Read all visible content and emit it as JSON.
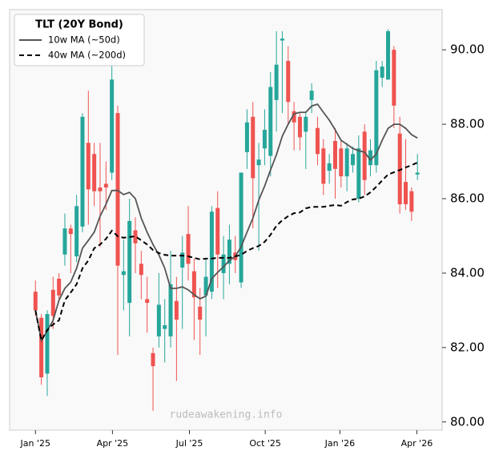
{
  "chart_data": {
    "type": "candlestick",
    "legend_title": "TLT (20Y Bond)",
    "legend_position": "upper left",
    "watermark": "rudeawakening.info",
    "up_color": "#26a69a",
    "down_color": "#ef5350",
    "x": [
      0,
      1,
      2,
      3,
      4,
      5,
      6,
      7,
      8,
      9,
      10,
      11,
      12,
      13,
      14,
      15,
      16,
      17,
      18,
      19,
      20,
      21,
      22,
      23,
      24,
      25,
      26,
      27,
      28,
      29,
      30,
      31,
      32,
      33,
      34,
      35,
      36,
      37,
      38,
      39,
      40,
      41,
      42,
      43,
      44,
      45,
      46,
      47,
      48,
      49,
      50,
      51,
      52,
      53,
      54,
      55,
      56,
      57,
      58,
      59,
      60,
      61,
      62,
      63,
      64,
      65
    ],
    "open": [
      83.5,
      82.8,
      81.3,
      83.55,
      83.85,
      84.5,
      85.2,
      84.45,
      85.25,
      87.5,
      87.2,
      86.3,
      86.4,
      86.7,
      88.3,
      83.95,
      83.2,
      85.15,
      84.25,
      83.3,
      81.85,
      82.3,
      82.5,
      82.3,
      83.25,
      84.15,
      85.05,
      84.05,
      83.1,
      83.4,
      83.5,
      85.75,
      84.0,
      84.25,
      84.55,
      83.75,
      87.25,
      88.2,
      86.9,
      87.35,
      87.15,
      88.65,
      90.25,
      89.7,
      88.35,
      88.2,
      87.8,
      88.65,
      87.9,
      87.35,
      86.75,
      87.55,
      87.35,
      86.6,
      86.9,
      86.0,
      87.8,
      86.9,
      86.9,
      89.25,
      89.2,
      90.0,
      87.75,
      86.45,
      86.2,
      86.65
    ],
    "high": [
      83.8,
      82.9,
      83.0,
      83.9,
      84.0,
      85.6,
      85.3,
      86.1,
      88.3,
      88.9,
      87.5,
      87.5,
      87.0,
      89.8,
      88.5,
      84.9,
      86.0,
      85.5,
      84.6,
      83.9,
      82.0,
      84.0,
      83.3,
      84.6,
      83.9,
      85.0,
      85.8,
      84.4,
      83.6,
      84.4,
      85.8,
      86.2,
      85.0,
      85.3,
      85.0,
      86.7,
      88.4,
      88.6,
      87.5,
      88.4,
      89.4,
      90.5,
      90.5,
      90.1,
      88.6,
      88.3,
      88.3,
      89.1,
      88.2,
      87.6,
      87.2,
      87.9,
      87.6,
      87.5,
      87.4,
      87.7,
      88.0,
      87.6,
      89.7,
      89.7,
      90.55,
      90.1,
      88.2,
      87.6,
      86.3,
      87.2
    ],
    "low": [
      82.85,
      81.0,
      80.7,
      82.5,
      83.3,
      84.2,
      84.0,
      84.3,
      85.1,
      85.3,
      85.8,
      84.7,
      85.7,
      86.5,
      81.8,
      83.0,
      82.3,
      84.0,
      83.3,
      82.4,
      80.3,
      82.0,
      81.6,
      82.0,
      81.1,
      82.5,
      83.8,
      82.2,
      81.8,
      82.3,
      83.3,
      83.6,
      83.3,
      83.7,
      84.0,
      83.6,
      86.8,
      85.2,
      84.6,
      86.9,
      86.6,
      87.8,
      88.3,
      88.0,
      87.3,
      87.3,
      86.8,
      88.3,
      86.9,
      86.1,
      86.4,
      86.0,
      86.3,
      86.2,
      86.7,
      85.9,
      86.1,
      86.6,
      86.7,
      89.0,
      89.2,
      87.9,
      85.6,
      85.7,
      85.4,
      86.5
    ],
    "close": [
      83.0,
      81.2,
      82.9,
      82.85,
      83.4,
      85.2,
      85.05,
      85.8,
      88.2,
      86.25,
      86.2,
      86.2,
      86.3,
      89.2,
      84.2,
      84.05,
      85.4,
      84.8,
      83.95,
      83.2,
      81.5,
      83.15,
      82.6,
      83.7,
      82.75,
      84.55,
      84.25,
      83.35,
      82.75,
      83.9,
      85.65,
      84.5,
      84.5,
      84.9,
      84.35,
      86.7,
      88.05,
      86.55,
      87.05,
      87.85,
      89.0,
      89.6,
      90.3,
      88.6,
      88.05,
      87.65,
      88.2,
      88.9,
      87.2,
      86.4,
      86.95,
      86.8,
      86.6,
      87.35,
      87.2,
      87.35,
      86.5,
      87.3,
      89.45,
      89.55,
      90.5,
      88.5,
      85.85,
      85.85,
      85.65,
      86.7
    ],
    "lines": [
      {
        "name": "10w MA (~50d)",
        "color": "#555555",
        "dash": false,
        "values": [
          83.0,
          82.19,
          82.45,
          82.73,
          83.27,
          83.59,
          83.76,
          84.13,
          84.67,
          84.88,
          85.1,
          85.53,
          85.85,
          86.22,
          86.22,
          86.11,
          86.17,
          86.0,
          85.48,
          85.1,
          84.77,
          84.49,
          84.13,
          83.59,
          83.59,
          83.63,
          83.55,
          83.42,
          83.31,
          83.38,
          83.85,
          84.02,
          84.17,
          84.34,
          84.45,
          84.71,
          85.1,
          85.48,
          85.96,
          86.34,
          86.77,
          87.18,
          87.68,
          88.0,
          88.28,
          88.32,
          88.32,
          88.49,
          88.54,
          88.32,
          88.11,
          87.85,
          87.57,
          87.46,
          87.35,
          87.29,
          87.25,
          87.04,
          87.2,
          87.57,
          87.89,
          88.0,
          88.0,
          87.89,
          87.72,
          87.63
        ]
      },
      {
        "name": "40w MA (~200d)",
        "color": "#000000",
        "dash": true,
        "values": [
          83.0,
          82.19,
          82.47,
          82.62,
          82.73,
          83.27,
          83.48,
          83.7,
          84.13,
          84.34,
          84.67,
          84.77,
          84.92,
          85.14,
          84.99,
          84.95,
          84.97,
          84.99,
          84.88,
          84.77,
          84.62,
          84.54,
          84.49,
          84.47,
          84.47,
          84.47,
          84.45,
          84.41,
          84.37,
          84.39,
          84.39,
          84.41,
          84.41,
          84.41,
          84.45,
          84.49,
          84.6,
          84.67,
          84.73,
          84.84,
          85.03,
          85.27,
          85.42,
          85.53,
          85.61,
          85.63,
          85.74,
          85.78,
          85.78,
          85.78,
          85.81,
          85.83,
          85.81,
          85.91,
          85.98,
          86.0,
          86.06,
          86.17,
          86.32,
          86.49,
          86.65,
          86.71,
          86.77,
          86.84,
          86.9,
          86.97
        ]
      }
    ],
    "xlim": [
      -4.4,
      69.2
    ],
    "xticks": [
      {
        "value": 0,
        "label": "Jan '25"
      },
      {
        "value": 13.1,
        "label": "Apr '25"
      },
      {
        "value": 26.2,
        "label": "Jul '25"
      },
      {
        "value": 39.1,
        "label": "Oct '25"
      },
      {
        "value": 51.8,
        "label": "Jan '26"
      },
      {
        "value": 64.9,
        "label": "Apr '26"
      }
    ],
    "ylim": [
      79.78,
      91.08
    ],
    "yticks": [
      {
        "value": 80,
        "label": "80.00"
      },
      {
        "value": 82,
        "label": "82.00"
      },
      {
        "value": 84,
        "label": "84.00"
      },
      {
        "value": 86,
        "label": "86.00"
      },
      {
        "value": 88,
        "label": "88.00"
      },
      {
        "value": 90,
        "label": "90.00"
      }
    ],
    "y_axis_side": "right"
  }
}
